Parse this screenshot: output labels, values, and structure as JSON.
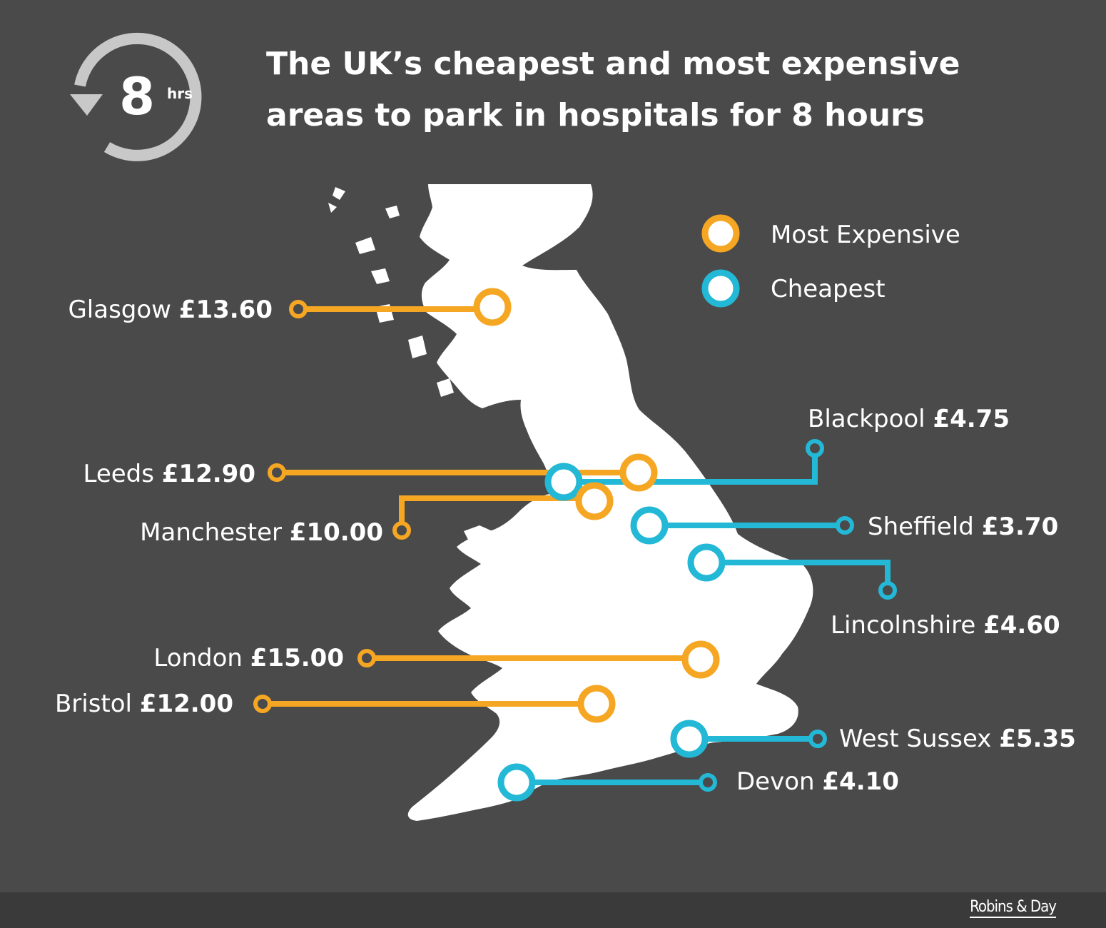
{
  "header": {
    "title_line1": "The UK’s cheapest and most expensive",
    "title_line2": "areas to park in hospitals for 8 hours",
    "badge_number": "8",
    "badge_unit": "hrs"
  },
  "legend": {
    "expensive_label": "Most Expensive",
    "cheapest_label": "Cheapest"
  },
  "colors": {
    "background": "#4a4a4a",
    "expensive": "#f5a623",
    "cheapest": "#22b8d6",
    "land": "#ffffff",
    "icon": "#c8c8c8"
  },
  "locations": [
    {
      "name": "Glasgow",
      "price": "£13.60",
      "category": "expensive"
    },
    {
      "name": "Leeds",
      "price": "£12.90",
      "category": "expensive"
    },
    {
      "name": "Manchester",
      "price": "£10.00",
      "category": "expensive"
    },
    {
      "name": "London",
      "price": "£15.00",
      "category": "expensive"
    },
    {
      "name": "Bristol",
      "price": "£12.00",
      "category": "expensive"
    },
    {
      "name": "Blackpool",
      "price": "£4.75",
      "category": "cheapest"
    },
    {
      "name": "Sheffield",
      "price": "£3.70",
      "category": "cheapest"
    },
    {
      "name": "Lincolnshire",
      "price": "£4.60",
      "category": "cheapest"
    },
    {
      "name": "West Sussex",
      "price": "£5.35",
      "category": "cheapest"
    },
    {
      "name": "Devon",
      "price": "£4.10",
      "category": "cheapest"
    }
  ],
  "footer": {
    "brand": "Robins & Day"
  }
}
